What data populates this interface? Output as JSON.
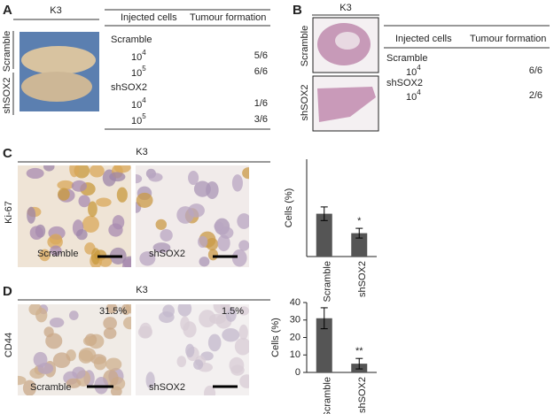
{
  "panel_a": {
    "letter": "A",
    "cell_line": "K3",
    "photo_labels": [
      "Scramble",
      "shSOX2"
    ],
    "table": {
      "headers": [
        "Injected cells",
        "Tumour formation"
      ],
      "groups": [
        {
          "name": "Scramble",
          "rows": [
            {
              "base": "10",
              "exp": "4",
              "result": "5/6"
            },
            {
              "base": "10",
              "exp": "5",
              "result": "6/6"
            }
          ]
        },
        {
          "name": "shSOX2",
          "rows": [
            {
              "base": "10",
              "exp": "4",
              "result": "1/6"
            },
            {
              "base": "10",
              "exp": "5",
              "result": "3/6"
            }
          ]
        }
      ]
    }
  },
  "panel_b": {
    "letter": "B",
    "cell_line": "K3",
    "photo_labels": [
      "Scramble",
      "shSOX2"
    ],
    "table": {
      "headers": [
        "Injected cells",
        "Tumour formation"
      ],
      "groups": [
        {
          "name": "Scramble",
          "rows": [
            {
              "base": "10",
              "exp": "4",
              "result": "6/6"
            }
          ]
        },
        {
          "name": "shSOX2",
          "rows": [
            {
              "base": "10",
              "exp": "4",
              "result": "2/6"
            }
          ]
        }
      ]
    }
  },
  "panel_c": {
    "letter": "C",
    "cell_line": "K3",
    "stain": "Ki-67",
    "image_labels": [
      "Scramble",
      "shSOX2"
    ]
  },
  "panel_d": {
    "letter": "D",
    "cell_line": "K3",
    "stain": "CD44",
    "image_labels": [
      "Scramble",
      "shSOX2"
    ],
    "percentages": [
      "31.5%",
      "1.5%"
    ]
  },
  "chart_data": [
    {
      "type": "bar",
      "ylabel": "Cells (%)",
      "categories": [
        "Scramble",
        "shSOX2"
      ],
      "values": [
        22,
        12
      ],
      "errors": [
        3.5,
        2.5
      ],
      "color": "#555555",
      "ylim": [
        0,
        50
      ],
      "annotations": [
        {
          "text": "*",
          "category": "shSOX2"
        }
      ]
    },
    {
      "type": "bar",
      "ylabel": "Cells (%)",
      "categories": [
        "Scramble",
        "shSOX2"
      ],
      "values": [
        31,
        5
      ],
      "errors": [
        6,
        3
      ],
      "color": "#555555",
      "ylim": [
        0,
        40
      ],
      "yticks": [
        0,
        10,
        20,
        30,
        40
      ],
      "annotations": [
        {
          "text": "**",
          "category": "shSOX2"
        }
      ]
    }
  ]
}
